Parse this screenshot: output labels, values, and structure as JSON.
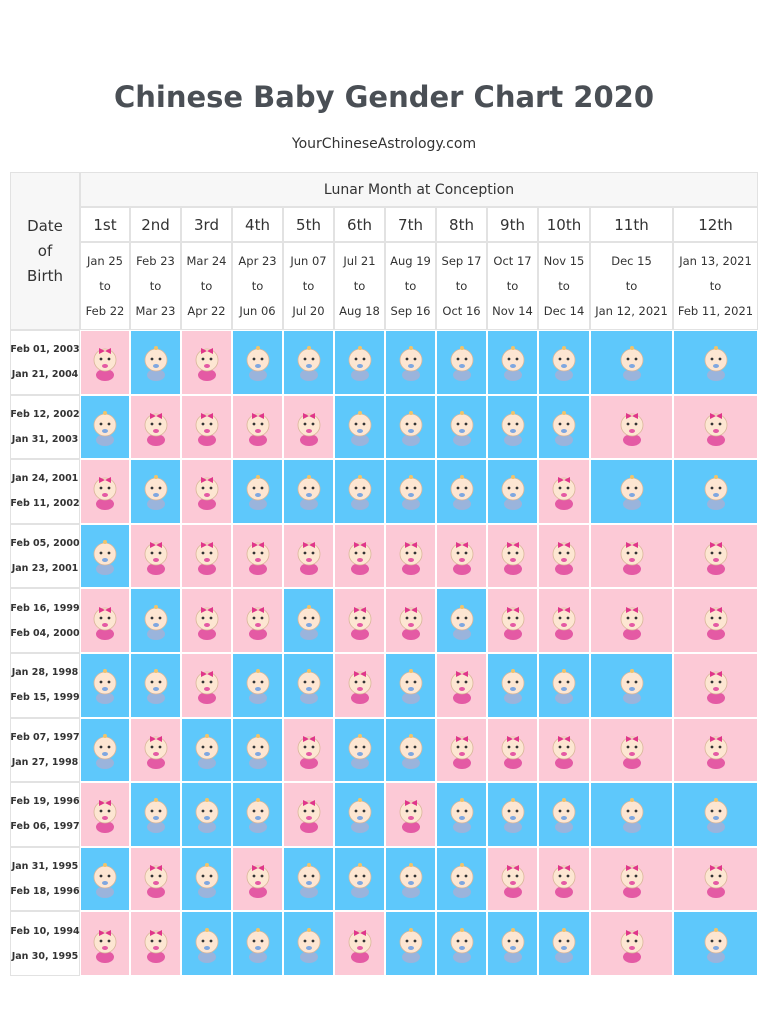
{
  "header": {
    "title": "Chinese Baby Gender Chart 2020",
    "subtitle": "YourChineseAstrology.com"
  },
  "table": {
    "corner": [
      "Date",
      "of",
      "Birth"
    ],
    "group_header": "Lunar Month at Conception",
    "columns": [
      {
        "month": "1st",
        "dates": [
          "Jan 25",
          "to",
          "Feb 22"
        ]
      },
      {
        "month": "2nd",
        "dates": [
          "Feb 23",
          "to",
          "Mar 23"
        ]
      },
      {
        "month": "3rd",
        "dates": [
          "Mar 24",
          "to",
          "Apr 22"
        ]
      },
      {
        "month": "4th",
        "dates": [
          "Apr 23",
          "to",
          "Jun 06"
        ]
      },
      {
        "month": "5th",
        "dates": [
          "Jun 07",
          "to",
          "Jul 20"
        ]
      },
      {
        "month": "6th",
        "dates": [
          "Jul 21",
          "to",
          "Aug 18"
        ]
      },
      {
        "month": "7th",
        "dates": [
          "Aug 19",
          "to",
          "Sep 16"
        ]
      },
      {
        "month": "8th",
        "dates": [
          "Sep 17",
          "to",
          "Oct 16"
        ]
      },
      {
        "month": "9th",
        "dates": [
          "Oct 17",
          "to",
          "Nov 14"
        ]
      },
      {
        "month": "10th",
        "dates": [
          "Nov 15",
          "to",
          "Dec 14"
        ]
      },
      {
        "month": "11th",
        "dates": [
          "Dec 15",
          "to",
          "Jan 12, 2021"
        ]
      },
      {
        "month": "12th",
        "dates": [
          "Jan 13, 2021",
          "to",
          "Feb 11, 2021"
        ]
      }
    ],
    "rows": [
      {
        "birth": [
          "Feb 01, 2003",
          "Jan 21, 2004"
        ],
        "cells": [
          "G",
          "B",
          "G",
          "B",
          "B",
          "B",
          "B",
          "B",
          "B",
          "B",
          "B",
          "B"
        ]
      },
      {
        "birth": [
          "Feb 12, 2002",
          "Jan 31, 2003"
        ],
        "cells": [
          "B",
          "G",
          "G",
          "G",
          "G",
          "B",
          "B",
          "B",
          "B",
          "B",
          "G",
          "G"
        ]
      },
      {
        "birth": [
          "Jan 24, 2001",
          "Feb 11, 2002"
        ],
        "cells": [
          "G",
          "B",
          "G",
          "B",
          "B",
          "B",
          "B",
          "B",
          "B",
          "G",
          "B",
          "B"
        ]
      },
      {
        "birth": [
          "Feb 05, 2000",
          "Jan 23, 2001"
        ],
        "cells": [
          "B",
          "G",
          "G",
          "G",
          "G",
          "G",
          "G",
          "G",
          "G",
          "G",
          "G",
          "G"
        ]
      },
      {
        "birth": [
          "Feb 16, 1999",
          "Feb 04, 2000"
        ],
        "cells": [
          "G",
          "B",
          "G",
          "G",
          "B",
          "G",
          "G",
          "B",
          "G",
          "G",
          "G",
          "G"
        ]
      },
      {
        "birth": [
          "Jan 28, 1998",
          "Feb 15, 1999"
        ],
        "cells": [
          "B",
          "B",
          "G",
          "B",
          "B",
          "G",
          "B",
          "G",
          "B",
          "B",
          "B",
          "G"
        ]
      },
      {
        "birth": [
          "Feb 07, 1997",
          "Jan 27, 1998"
        ],
        "cells": [
          "B",
          "G",
          "B",
          "B",
          "G",
          "B",
          "B",
          "G",
          "G",
          "G",
          "G",
          "G"
        ]
      },
      {
        "birth": [
          "Feb 19, 1996",
          "Feb 06, 1997"
        ],
        "cells": [
          "G",
          "B",
          "B",
          "B",
          "G",
          "B",
          "G",
          "B",
          "B",
          "B",
          "B",
          "B"
        ]
      },
      {
        "birth": [
          "Jan 31, 1995",
          "Feb 18, 1996"
        ],
        "cells": [
          "B",
          "G",
          "B",
          "G",
          "B",
          "B",
          "B",
          "B",
          "G",
          "G",
          "G",
          "G"
        ]
      },
      {
        "birth": [
          "Feb 10, 1994",
          "Jan 30, 1995"
        ],
        "cells": [
          "G",
          "G",
          "B",
          "B",
          "B",
          "G",
          "B",
          "B",
          "B",
          "B",
          "G",
          "B"
        ]
      }
    ]
  }
}
